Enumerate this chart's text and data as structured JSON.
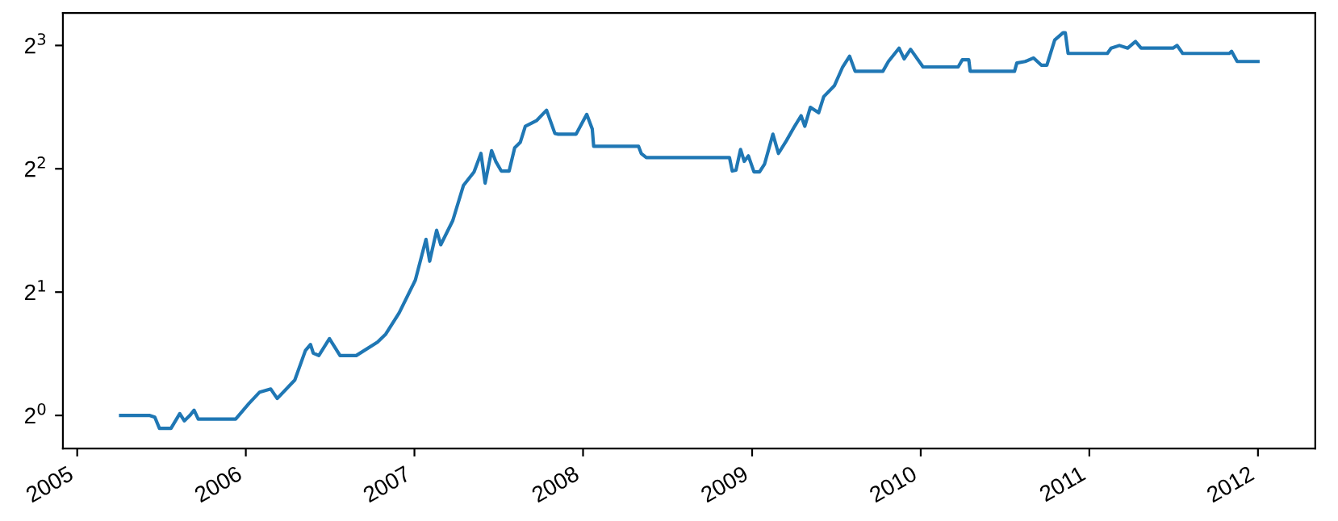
{
  "chart_data": {
    "type": "line",
    "log": "y",
    "legend": false,
    "grid": false,
    "marker": "none",
    "line_style": "solid",
    "xlim": [
      "2004-12-01",
      "2012-05-04"
    ],
    "ylim": [
      0.83,
      9.6
    ],
    "xticks": [
      "2005",
      "2006",
      "2007",
      "2008",
      "2009",
      "2010",
      "2011",
      "2012"
    ],
    "yticks": [
      {
        "value": 1,
        "label": "2$^{0}$"
      },
      {
        "value": 2,
        "label": "2$^{1}$"
      },
      {
        "value": 4,
        "label": "2$^{2}$"
      },
      {
        "value": 8,
        "label": "2$^{3}$"
      }
    ],
    "series": [
      {
        "color": "#1f77b4",
        "x": [
          "2005-04-05",
          "2005-06-06",
          "2005-06-18",
          "2005-06-28",
          "2005-07-23",
          "2005-08-11",
          "2005-08-21",
          "2005-09-02",
          "2005-09-11",
          "2005-09-20",
          "2005-12-10",
          "2006-01-08",
          "2006-01-31",
          "2006-02-24",
          "2006-03-10",
          "2006-04-17",
          "2006-05-10",
          "2006-05-21",
          "2006-05-27",
          "2006-06-08",
          "2006-07-01",
          "2006-07-24",
          "2006-08-28",
          "2006-10-13",
          "2006-10-31",
          "2006-11-29",
          "2007-01-03",
          "2007-01-26",
          "2007-02-03",
          "2007-02-18",
          "2007-02-27",
          "2007-03-25",
          "2007-04-17",
          "2007-05-10",
          "2007-05-25",
          "2007-06-03",
          "2007-06-17",
          "2007-06-26",
          "2007-07-08",
          "2007-07-25",
          "2007-08-06",
          "2007-08-18",
          "2007-08-29",
          "2007-09-22",
          "2007-10-14",
          "2007-11-01",
          "2007-11-07",
          "2007-12-17",
          "2008-01-09",
          "2008-01-21",
          "2008-01-24",
          "2008-04-30",
          "2008-05-06",
          "2008-05-17",
          "2008-11-13",
          "2008-11-19",
          "2008-11-27",
          "2008-12-07",
          "2008-12-15",
          "2008-12-24",
          "2009-01-05",
          "2009-01-17",
          "2009-01-28",
          "2009-02-15",
          "2009-02-27",
          "2009-03-16",
          "2009-04-03",
          "2009-04-17",
          "2009-04-25",
          "2009-05-07",
          "2009-05-25",
          "2009-06-05",
          "2009-06-28",
          "2009-07-16",
          "2009-07-31",
          "2009-08-12",
          "2009-10-11",
          "2009-10-23",
          "2009-11-15",
          "2009-11-26",
          "2009-12-10",
          "2010-01-06",
          "2010-03-23",
          "2010-04-01",
          "2010-04-15",
          "2010-04-18",
          "2010-07-23",
          "2010-07-28",
          "2010-08-15",
          "2010-09-02",
          "2010-09-19",
          "2010-10-01",
          "2010-10-18",
          "2010-11-05",
          "2010-11-10",
          "2010-11-16",
          "2011-02-09",
          "2011-02-17",
          "2011-03-07",
          "2011-03-25",
          "2011-04-11",
          "2011-04-23",
          "2011-07-01",
          "2011-07-10",
          "2011-07-22",
          "2011-10-31",
          "2011-11-05",
          "2011-11-17",
          "2012-01-01"
        ],
        "values": [
          1.0,
          1.0,
          0.99,
          0.93,
          0.93,
          1.01,
          0.97,
          1.0,
          1.03,
          0.98,
          0.98,
          1.07,
          1.14,
          1.16,
          1.1,
          1.22,
          1.44,
          1.49,
          1.42,
          1.4,
          1.54,
          1.4,
          1.4,
          1.51,
          1.58,
          1.78,
          2.14,
          2.69,
          2.38,
          2.83,
          2.61,
          2.99,
          3.64,
          3.93,
          4.36,
          3.69,
          4.43,
          4.17,
          3.95,
          3.95,
          4.5,
          4.64,
          5.08,
          5.24,
          5.56,
          4.88,
          4.86,
          4.86,
          5.43,
          5.0,
          4.54,
          4.54,
          4.36,
          4.26,
          4.26,
          3.95,
          3.97,
          4.46,
          4.17,
          4.3,
          3.93,
          3.93,
          4.11,
          4.86,
          4.36,
          4.68,
          5.08,
          5.39,
          5.08,
          5.65,
          5.48,
          6.0,
          6.38,
          7.09,
          7.53,
          6.92,
          6.92,
          7.31,
          7.88,
          7.42,
          7.83,
          7.09,
          7.09,
          7.38,
          7.38,
          6.92,
          6.92,
          7.25,
          7.31,
          7.46,
          7.16,
          7.16,
          8.25,
          8.59,
          8.59,
          7.65,
          7.65,
          7.88,
          8.0,
          7.88,
          8.18,
          7.88,
          7.88,
          8.0,
          7.65,
          7.65,
          7.74,
          7.31,
          7.31
        ]
      }
    ]
  }
}
